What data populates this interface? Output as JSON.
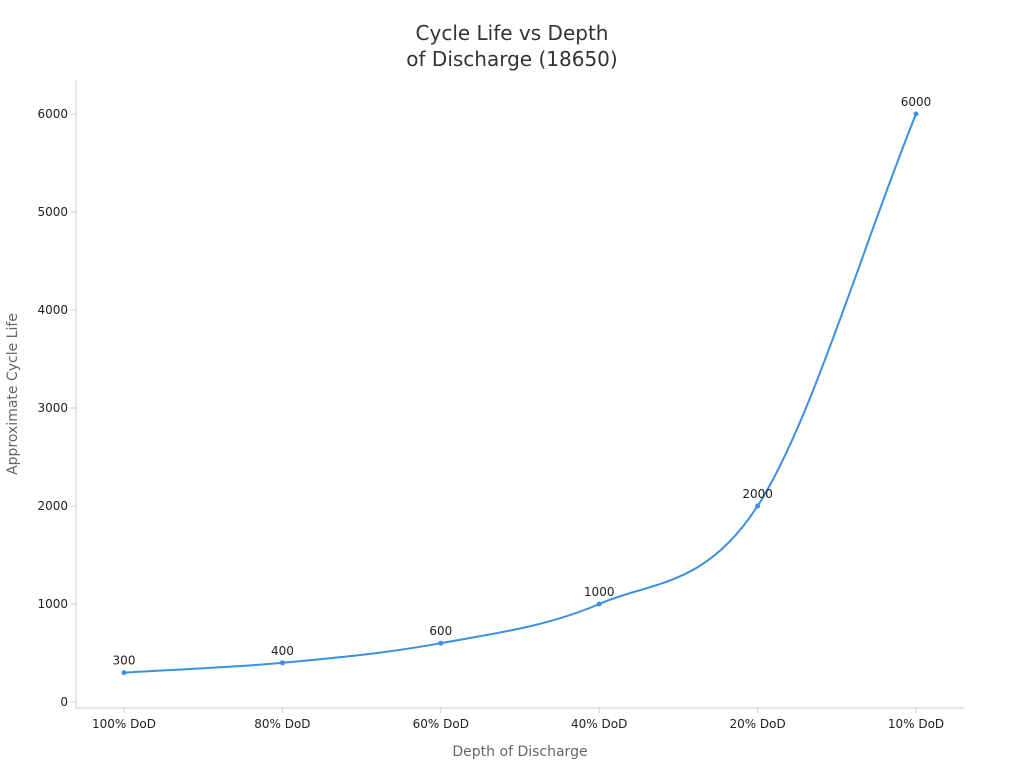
{
  "chart_data": {
    "type": "line",
    "title_lines": [
      "Cycle Life vs Depth",
      "of Discharge (18650)"
    ],
    "xlabel": "Depth of Discharge",
    "ylabel": "Approximate Cycle Life",
    "categories": [
      "100% DoD",
      "80% DoD",
      "60% DoD",
      "40% DoD",
      "20% DoD",
      "10% DoD"
    ],
    "series": [
      {
        "name": "Approximate Cycle Life",
        "values": [
          300,
          400,
          600,
          1000,
          2000,
          6000
        ]
      }
    ],
    "ylim": [
      0,
      6000
    ],
    "yticks": [
      0,
      1000,
      2000,
      3000,
      4000,
      5000,
      6000
    ],
    "grid": false,
    "legend": "none",
    "line_color": "#3b90e0"
  }
}
